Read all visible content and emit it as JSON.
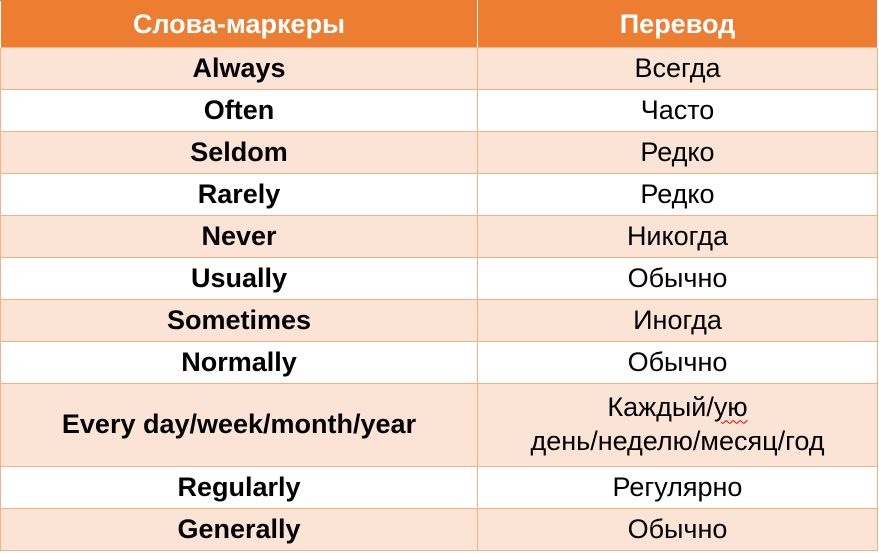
{
  "table": {
    "headers": [
      "Слова-маркеры",
      "Перевод"
    ],
    "rows": [
      {
        "term": "Always",
        "translation": "Всегда"
      },
      {
        "term": "Often",
        "translation": "Часто"
      },
      {
        "term": "Seldom",
        "translation": "Редко"
      },
      {
        "term": "Rarely",
        "translation": "Редко"
      },
      {
        "term": "Never",
        "translation": "Никогда"
      },
      {
        "term": "Usually",
        "translation": "Обычно"
      },
      {
        "term": "Sometimes",
        "translation": "Иногда"
      },
      {
        "term": "Normally",
        "translation": "Обычно"
      },
      {
        "term": "Every day/week/month/year",
        "translation_line1_prefix": "Каждый/",
        "translation_line1_marked": "ую",
        "translation_line2": "день/неделю/месяц/год"
      },
      {
        "term": "Regularly",
        "translation": "Регулярно"
      },
      {
        "term": "Generally",
        "translation": "Обычно"
      }
    ]
  },
  "colors": {
    "header_bg": "#ed7d31",
    "header_text": "#ffffff",
    "band_bg": "#fbe4d5",
    "border": "#f4b183",
    "spellcheck_underline": "#e00000"
  }
}
